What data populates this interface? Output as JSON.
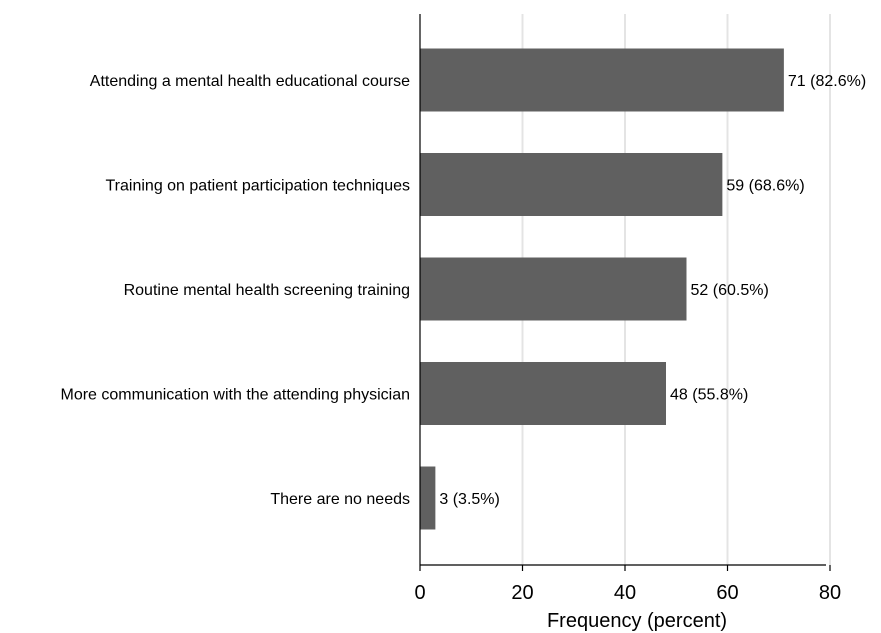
{
  "chart_data": {
    "type": "bar",
    "orientation": "horizontal",
    "categories": [
      "Attending a mental health educational course",
      "Training on patient participation techniques",
      "Routine mental health screening training",
      "More communication with the attending physician",
      "There are no needs"
    ],
    "values": [
      71,
      59,
      52,
      48,
      3
    ],
    "data_labels": [
      "71 (82.6%)",
      "59 (68.6%)",
      "52 (60.5%)",
      "48 (55.8%)",
      "3 (3.5%)"
    ],
    "title": "",
    "xlabel": "Frequency (percent)",
    "ylabel": "",
    "xlim": [
      0,
      80
    ],
    "xticks": [
      "0",
      "20",
      "40",
      "60",
      "80"
    ],
    "grid": true,
    "bar_color": "#606060",
    "grid_color": "#e4e4e4"
  }
}
